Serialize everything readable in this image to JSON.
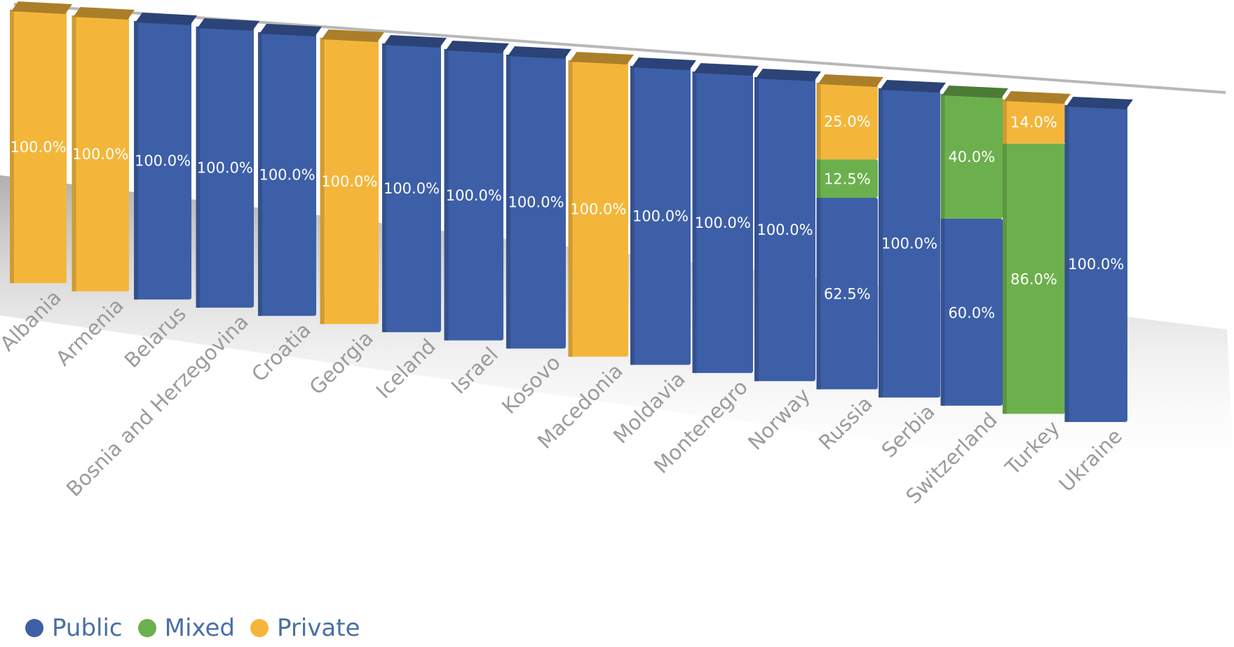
{
  "chart_data": {
    "type": "bar",
    "stacked": true,
    "categories": [
      "Albania",
      "Armenia",
      "Belarus",
      "Bosnia and Herzegovina",
      "Croatia",
      "Georgia",
      "Iceland",
      "Israel",
      "Kosovo",
      "Macedonia",
      "Moldavia",
      "Montenegro",
      "Norway",
      "Russia",
      "Serbia",
      "Switzerland",
      "Turkey",
      "Ukraine"
    ],
    "series": [
      {
        "name": "Public",
        "color": "#3d5fa8",
        "values": [
          0,
          0,
          100,
          100,
          100,
          0,
          100,
          100,
          100,
          0,
          100,
          100,
          100,
          62.5,
          100,
          60,
          0,
          100
        ]
      },
      {
        "name": "Mixed",
        "color": "#6cb04d",
        "values": [
          0,
          0,
          0,
          0,
          0,
          0,
          0,
          0,
          0,
          0,
          0,
          0,
          0,
          12.5,
          0,
          40,
          86,
          0
        ]
      },
      {
        "name": "Private",
        "color": "#f4b63a",
        "values": [
          100,
          100,
          0,
          0,
          0,
          100,
          0,
          0,
          0,
          100,
          0,
          0,
          0,
          25,
          0,
          0,
          14,
          0
        ]
      }
    ],
    "data_labels": [
      [
        "",
        "",
        "100.0%"
      ],
      [
        "",
        "",
        "100.0%"
      ],
      [
        "100.0%",
        "",
        ""
      ],
      [
        "100.0%",
        "",
        ""
      ],
      [
        "100.0%",
        "",
        ""
      ],
      [
        "",
        "",
        "100.0%"
      ],
      [
        "100.0%",
        "",
        ""
      ],
      [
        "100.0%",
        "",
        ""
      ],
      [
        "100.0%",
        "",
        ""
      ],
      [
        "",
        "",
        "100.0%"
      ],
      [
        "100.0%",
        "",
        ""
      ],
      [
        "100.0%",
        "",
        ""
      ],
      [
        "100.0%",
        "",
        ""
      ],
      [
        "62.5%",
        "12.5%",
        "25.0%"
      ],
      [
        "100.0%",
        "",
        ""
      ],
      [
        "60.0%",
        "40.0%",
        ""
      ],
      [
        "",
        "86.0%",
        "14.0%"
      ],
      [
        "100.0%",
        "",
        ""
      ]
    ],
    "ylim": [
      0,
      100
    ],
    "legend_position": "bottom-left",
    "title": "",
    "xlabel": "",
    "ylabel": ""
  }
}
